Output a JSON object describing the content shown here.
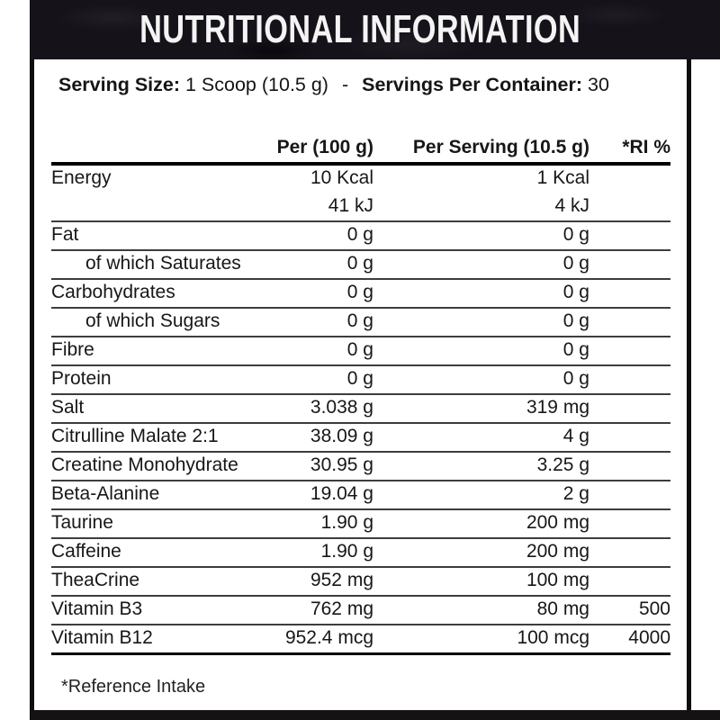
{
  "header": {
    "title": "NUTRITIONAL INFORMATION"
  },
  "serving": {
    "size_label": "Serving Size:",
    "size_value": "1 Scoop (10.5 g)",
    "separator": "-",
    "container_label": "Servings Per Container:",
    "container_value": "30"
  },
  "table": {
    "columns": {
      "name": "",
      "per100": "Per (100 g)",
      "per_serving": "Per Serving (10.5 g)",
      "ri": "*RI %"
    },
    "rows": [
      {
        "name": "Energy",
        "per100": "10 Kcal",
        "serving": "1 Kcal",
        "ri": "",
        "divider": false
      },
      {
        "name": "",
        "per100": "41 kJ",
        "serving": "4 kJ",
        "ri": ""
      },
      {
        "name": "Fat",
        "per100": "0 g",
        "serving": "0 g",
        "ri": ""
      },
      {
        "name": "of which Saturates",
        "per100": "0 g",
        "serving": "0 g",
        "ri": "",
        "indent": true
      },
      {
        "name": "Carbohydrates",
        "per100": "0 g",
        "serving": "0 g",
        "ri": ""
      },
      {
        "name": "of which Sugars",
        "per100": "0 g",
        "serving": "0 g",
        "ri": "",
        "indent": true
      },
      {
        "name": "Fibre",
        "per100": "0 g",
        "serving": "0 g",
        "ri": ""
      },
      {
        "name": "Protein",
        "per100": "0 g",
        "serving": "0 g",
        "ri": ""
      },
      {
        "name": "Salt",
        "per100": "3.038 g",
        "serving": "319 mg",
        "ri": ""
      },
      {
        "name": "Citrulline Malate 2:1",
        "per100": "38.09 g",
        "serving": "4 g",
        "ri": ""
      },
      {
        "name": "Creatine Monohydrate",
        "per100": "30.95 g",
        "serving": "3.25 g",
        "ri": ""
      },
      {
        "name": "Beta-Alanine",
        "per100": "19.04 g",
        "serving": "2 g",
        "ri": ""
      },
      {
        "name": "Taurine",
        "per100": "1.90 g",
        "serving": "200 mg",
        "ri": ""
      },
      {
        "name": "Caffeine",
        "per100": "1.90 g",
        "serving": "200 mg",
        "ri": ""
      },
      {
        "name": "TheaCrine",
        "per100": "952 mg",
        "serving": "100 mg",
        "ri": ""
      },
      {
        "name": "Vitamin B3",
        "per100": "762 mg",
        "serving": "80 mg",
        "ri": "500"
      },
      {
        "name": "Vitamin B12",
        "per100": "952.4 mcg",
        "serving": "100 mcg",
        "ri": "4000",
        "final": true
      }
    ]
  },
  "footnote": "*Reference Intake",
  "colors": {
    "bar_background": "#16121a",
    "title_text": "#f4f4f4",
    "body_text": "#171717",
    "rule": "#000000"
  }
}
